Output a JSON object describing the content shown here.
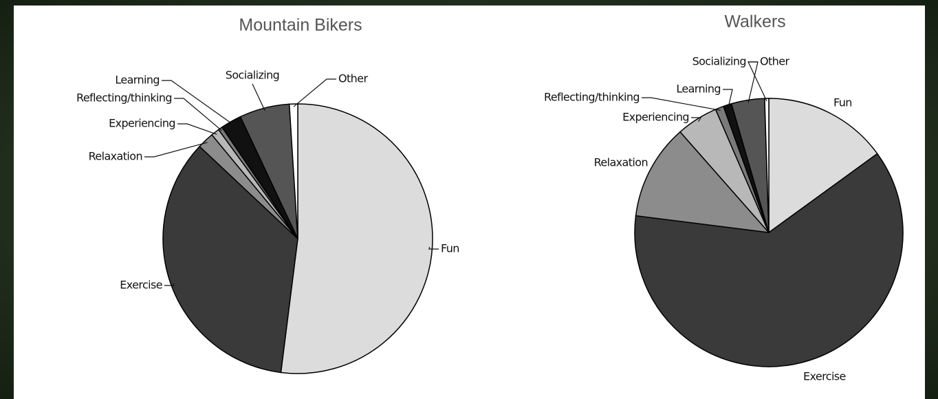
{
  "chart_data": [
    {
      "type": "pie",
      "title": "Mountain Bikers",
      "categories": [
        "Fun",
        "Exercise",
        "Relaxation",
        "Experiencing",
        "Reflecting/thinking",
        "Learning",
        "Socializing",
        "Other"
      ],
      "values": [
        52,
        35,
        2,
        1,
        0.5,
        2.5,
        6,
        1
      ],
      "colors": [
        "#dcdcdc",
        "#3a3a3a",
        "#8c8c8c",
        "#b8b8b8",
        "#7a7a7a",
        "#111111",
        "#555555",
        "#ffffff"
      ]
    },
    {
      "type": "pie",
      "title": "Walkers",
      "categories": [
        "Fun",
        "Exercise",
        "Relaxation",
        "Experiencing",
        "Reflecting/thinking",
        "Learning",
        "Socializing",
        "Other"
      ],
      "values": [
        15,
        62,
        11.5,
        5,
        1,
        1,
        4,
        0.5
      ],
      "colors": [
        "#dcdcdc",
        "#3a3a3a",
        "#8c8c8c",
        "#b8b8b8",
        "#7a7a7a",
        "#111111",
        "#555555",
        "#ffffff"
      ]
    }
  ]
}
